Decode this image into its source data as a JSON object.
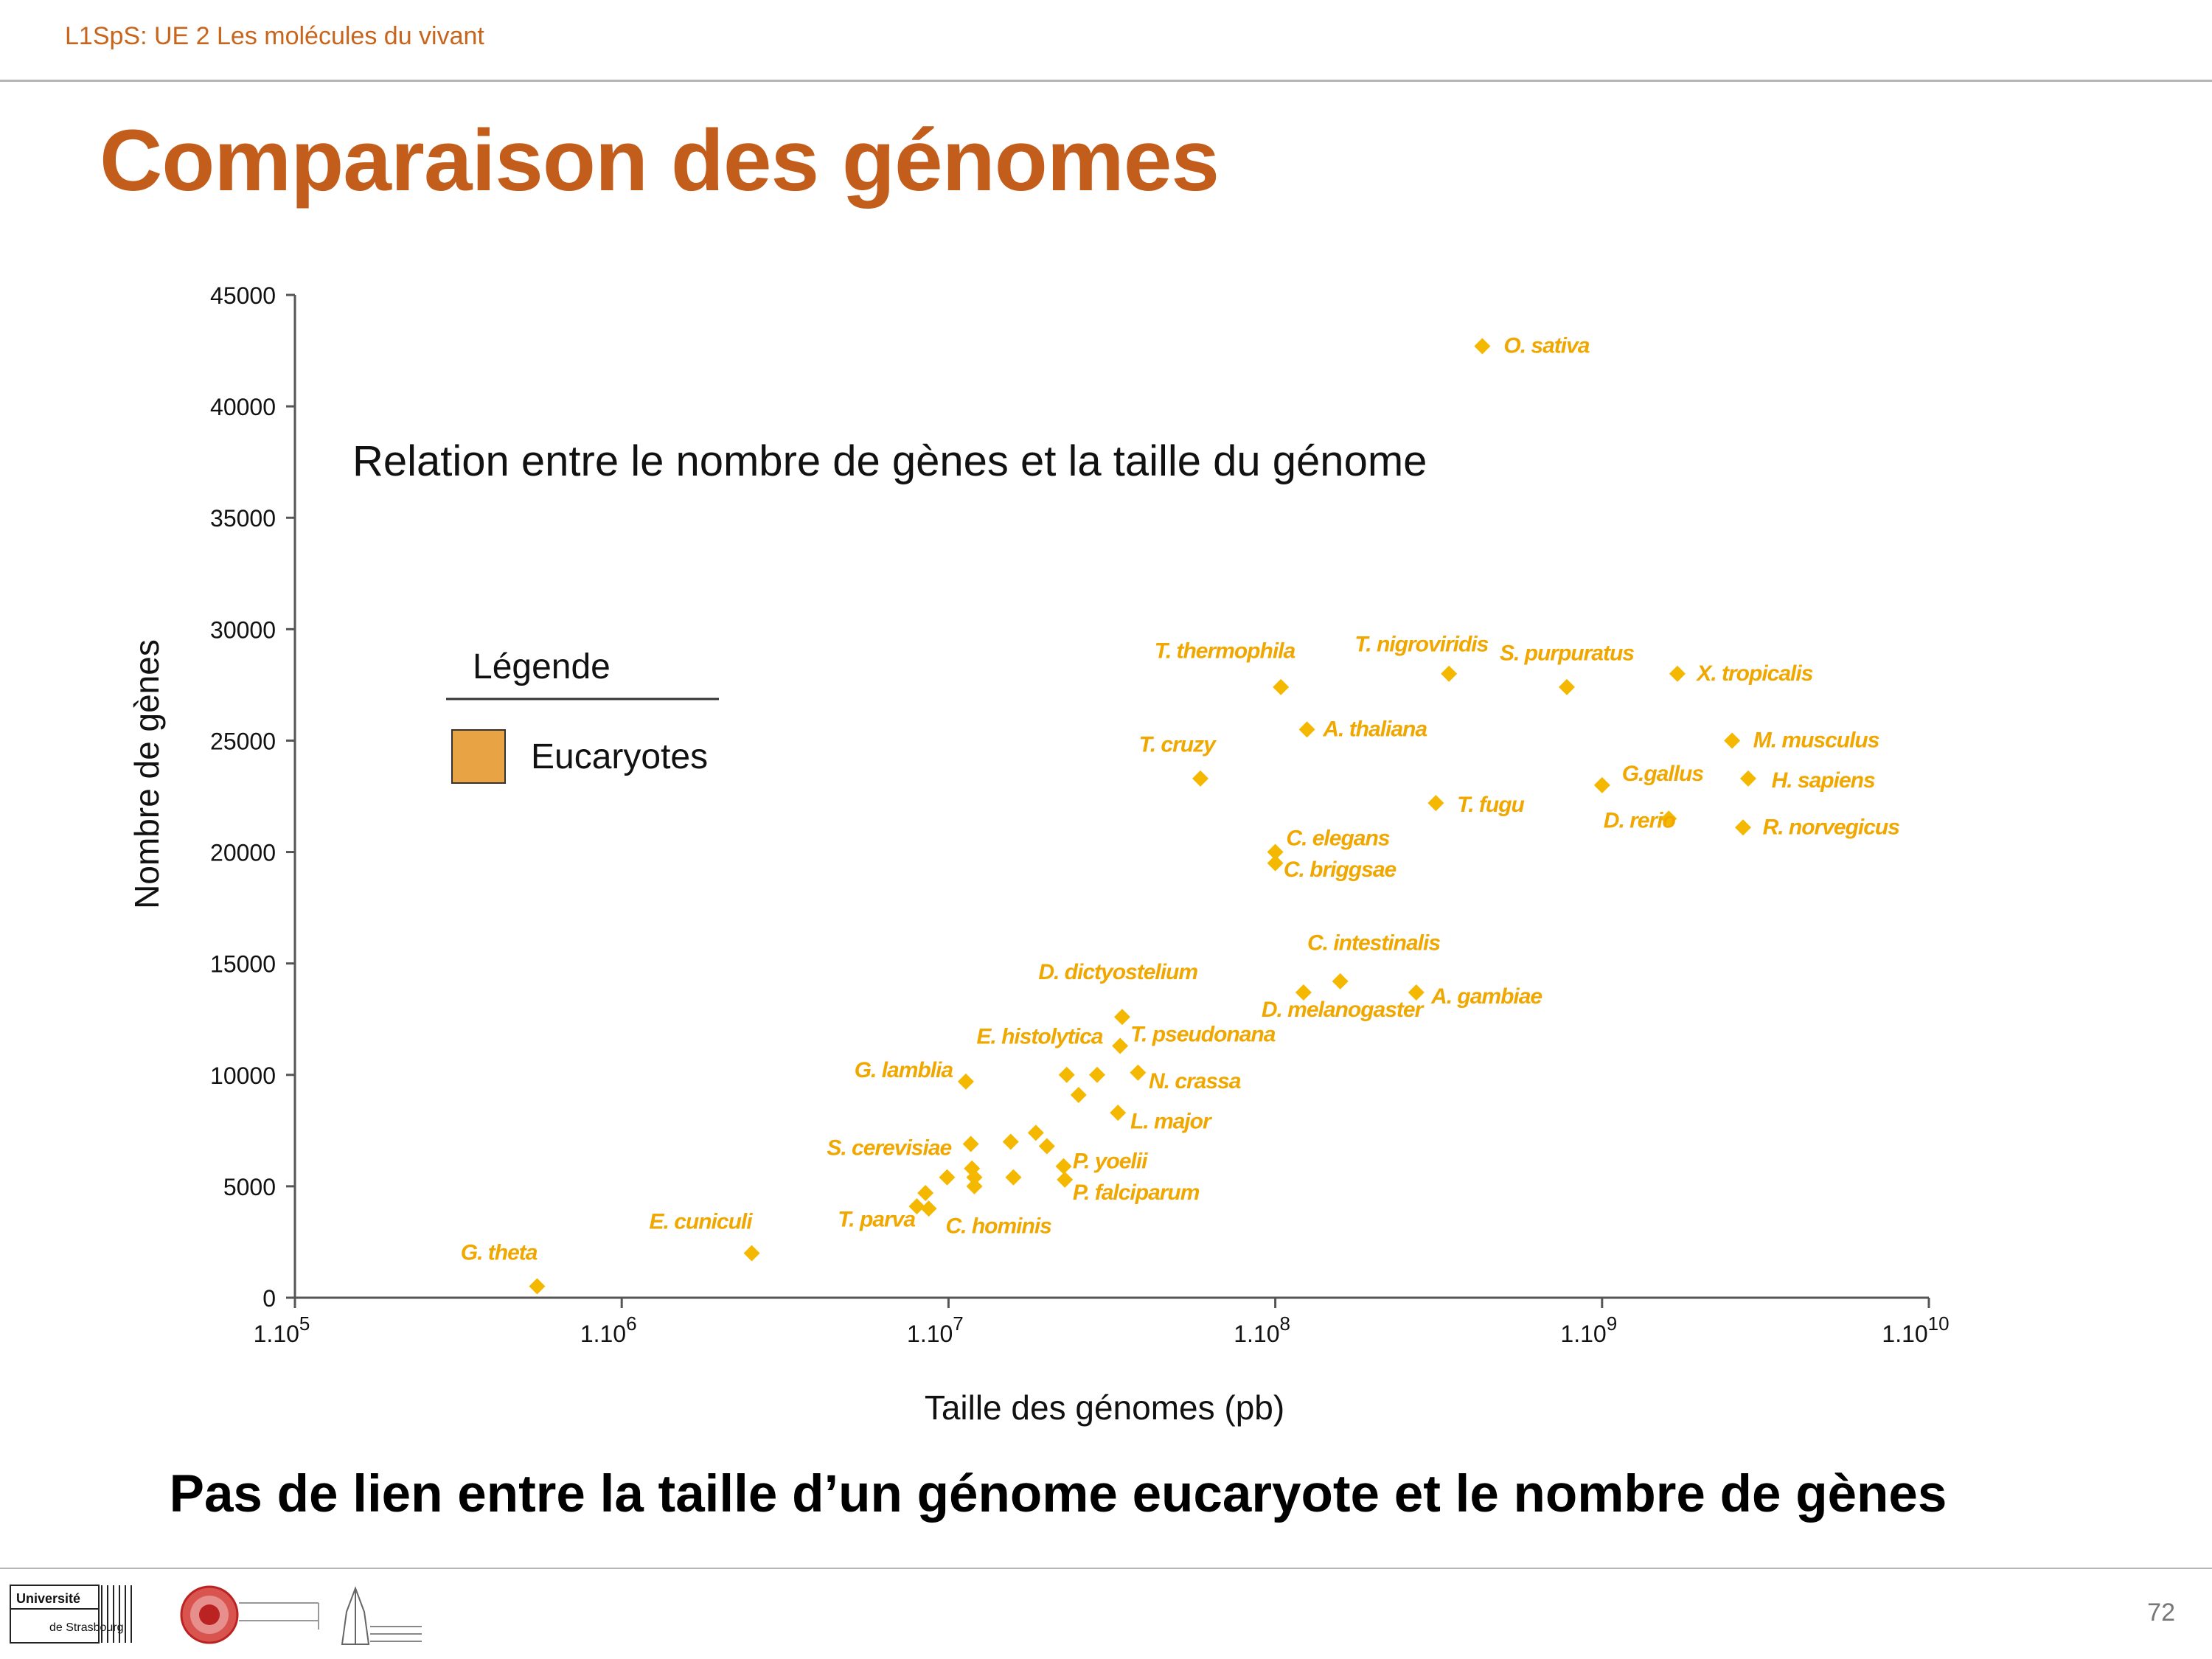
{
  "slide": {
    "header": "L1SpS: UE 2 Les molécules du vivant",
    "title": "Comparaison des génomes",
    "conclusion": "Pas de lien entre la taille d’un génome eucaryote et le nombre de gènes",
    "page_number": "72"
  },
  "logos": {
    "universite_line1": "Université",
    "universite_line2": "de Strasbourg"
  },
  "colors": {
    "accent": "#c35d1b",
    "marker": "#f5b800",
    "label": "#f0a800",
    "legend_swatch": "#e8a444"
  },
  "chart_data": {
    "type": "scatter",
    "title": "Relation entre le nombre de gènes et la taille du génome",
    "xlabel": "Taille des génomes (pb)",
    "ylabel": "Nombre de gènes",
    "x_scale": "log",
    "xlim": [
      100000,
      10000000000
    ],
    "ylim": [
      0,
      45000
    ],
    "xticks": [
      {
        "value": 100000,
        "label": "1.10",
        "exp": "5"
      },
      {
        "value": 1000000,
        "label": "1.10",
        "exp": "6"
      },
      {
        "value": 10000000,
        "label": "1.10",
        "exp": "7"
      },
      {
        "value": 100000000,
        "label": "1.10",
        "exp": "8"
      },
      {
        "value": 1000000000,
        "label": "1.10",
        "exp": "9"
      },
      {
        "value": 10000000000,
        "label": "1.10",
        "exp": "10"
      }
    ],
    "yticks": [
      0,
      5000,
      10000,
      15000,
      20000,
      25000,
      30000,
      35000,
      40000,
      45000
    ],
    "legend": {
      "title": "Légende",
      "entries": [
        "Eucaryotes"
      ],
      "position": "left"
    },
    "grid": false,
    "points": [
      {
        "x": 551000,
        "y": 513,
        "label": "G. theta"
      },
      {
        "x": 2500000,
        "y": 1997
      },
      {
        "x": 8000000,
        "y": 4100
      },
      {
        "x": 8500000,
        "y": 4700
      },
      {
        "x": 8700000,
        "y": 4000
      },
      {
        "x": 9900000,
        "y": 5400
      },
      {
        "x": 11300000,
        "y": 9700
      },
      {
        "x": 11700000,
        "y": 6900
      },
      {
        "x": 11800000,
        "y": 5800
      },
      {
        "x": 12000000,
        "y": 5400
      },
      {
        "x": 12000000,
        "y": 5000
      },
      {
        "x": 15500000,
        "y": 7000
      },
      {
        "x": 15800000,
        "y": 5400
      },
      {
        "x": 18500000,
        "y": 7400
      },
      {
        "x": 20000000,
        "y": 6800
      },
      {
        "x": 22500000,
        "y": 5900
      },
      {
        "x": 22700000,
        "y": 5300
      },
      {
        "x": 23000000,
        "y": 10000
      },
      {
        "x": 25000000,
        "y": 9100
      },
      {
        "x": 28500000,
        "y": 10000
      },
      {
        "x": 33000000,
        "y": 8300
      },
      {
        "x": 33500000,
        "y": 11300
      },
      {
        "x": 34000000,
        "y": 12600
      },
      {
        "x": 38000000,
        "y": 10100
      },
      {
        "x": 59000000,
        "y": 23300
      },
      {
        "x": 100000000,
        "y": 20000
      },
      {
        "x": 100000000,
        "y": 19500
      },
      {
        "x": 104000000,
        "y": 27400
      },
      {
        "x": 122000000,
        "y": 13700
      },
      {
        "x": 125000000,
        "y": 25500
      },
      {
        "x": 158000000,
        "y": 14200
      },
      {
        "x": 270000000,
        "y": 13700
      },
      {
        "x": 310000000,
        "y": 22200
      },
      {
        "x": 340000000,
        "y": 28000
      },
      {
        "x": 430000000,
        "y": 42700
      },
      {
        "x": 780000000,
        "y": 27400
      },
      {
        "x": 1000000000,
        "y": 23000
      },
      {
        "x": 1600000000,
        "y": 21500
      },
      {
        "x": 1700000000,
        "y": 28000
      },
      {
        "x": 2500000000,
        "y": 25000
      },
      {
        "x": 2700000000,
        "y": 21100
      },
      {
        "x": 2800000000,
        "y": 23300
      }
    ],
    "annotations": [
      {
        "text": "G. theta",
        "x": 551000,
        "y": 1700,
        "anchor": "end"
      },
      {
        "text": "E. cuniculi",
        "x": 2500000,
        "y": 3100,
        "anchor": "end"
      },
      {
        "text": "T. parva",
        "x": 7900000,
        "y": 3200,
        "anchor": "end"
      },
      {
        "text": "C. hominis",
        "x": 9800000,
        "y": 2900,
        "anchor": "start"
      },
      {
        "text": "S. cerevisiae",
        "x": 10200000,
        "y": 6400,
        "anchor": "end"
      },
      {
        "text": "G. lamblia",
        "x": 10300000,
        "y": 9900,
        "anchor": "end"
      },
      {
        "text": "E. histolytica",
        "x": 19000000,
        "y": 11400,
        "anchor": "middle"
      },
      {
        "text": "P. yoelii",
        "x": 24000000,
        "y": 5800,
        "anchor": "start"
      },
      {
        "text": "P. falciparum",
        "x": 24000000,
        "y": 4400,
        "anchor": "start"
      },
      {
        "text": "N. crassa",
        "x": 41000000,
        "y": 9400,
        "anchor": "start"
      },
      {
        "text": "L. major",
        "x": 36000000,
        "y": 7600,
        "anchor": "start"
      },
      {
        "text": "T. pseudonana",
        "x": 36000000,
        "y": 11500,
        "anchor": "start"
      },
      {
        "text": "D. dictyostelium",
        "x": 33000000,
        "y": 14300,
        "anchor": "middle"
      },
      {
        "text": "D. melanogaster",
        "x": 160000000,
        "y": 12600,
        "anchor": "middle"
      },
      {
        "text": "C. intestinalis",
        "x": 200000000,
        "y": 15600,
        "anchor": "middle"
      },
      {
        "text": "A. gambiae",
        "x": 300000000,
        "y": 13200,
        "anchor": "start"
      },
      {
        "text": "C. elegans",
        "x": 108000000,
        "y": 20300,
        "anchor": "start"
      },
      {
        "text": "C. briggsae",
        "x": 106000000,
        "y": 18900,
        "anchor": "start"
      },
      {
        "text": "T. cruzy",
        "x": 50000000,
        "y": 24500,
        "anchor": "middle"
      },
      {
        "text": "T. thermophila",
        "x": 70000000,
        "y": 28700,
        "anchor": "middle"
      },
      {
        "text": "A. thaliana",
        "x": 140000000,
        "y": 25200,
        "anchor": "start"
      },
      {
        "text": "T. nigroviridis",
        "x": 280000000,
        "y": 29000,
        "anchor": "middle"
      },
      {
        "text": "T. fugu",
        "x": 360000000,
        "y": 21800,
        "anchor": "start"
      },
      {
        "text": "S. purpuratus",
        "x": 780000000,
        "y": 28600,
        "anchor": "middle"
      },
      {
        "text": "O. sativa",
        "x": 500000000,
        "y": 42400,
        "anchor": "start"
      },
      {
        "text": "G.gallus",
        "x": 1150000000,
        "y": 23200,
        "anchor": "start"
      },
      {
        "text": "D. rerio",
        "x": 1300000000,
        "y": 21100,
        "anchor": "middle"
      },
      {
        "text": "X. tropicalis",
        "x": 1950000000,
        "y": 27700,
        "anchor": "start"
      },
      {
        "text": "M. musculus",
        "x": 2900000000,
        "y": 24700,
        "anchor": "start"
      },
      {
        "text": "H. sapiens",
        "x": 3300000000,
        "y": 22900,
        "anchor": "start"
      },
      {
        "text": "R. norvegicus",
        "x": 3100000000,
        "y": 20800,
        "anchor": "start"
      }
    ]
  }
}
